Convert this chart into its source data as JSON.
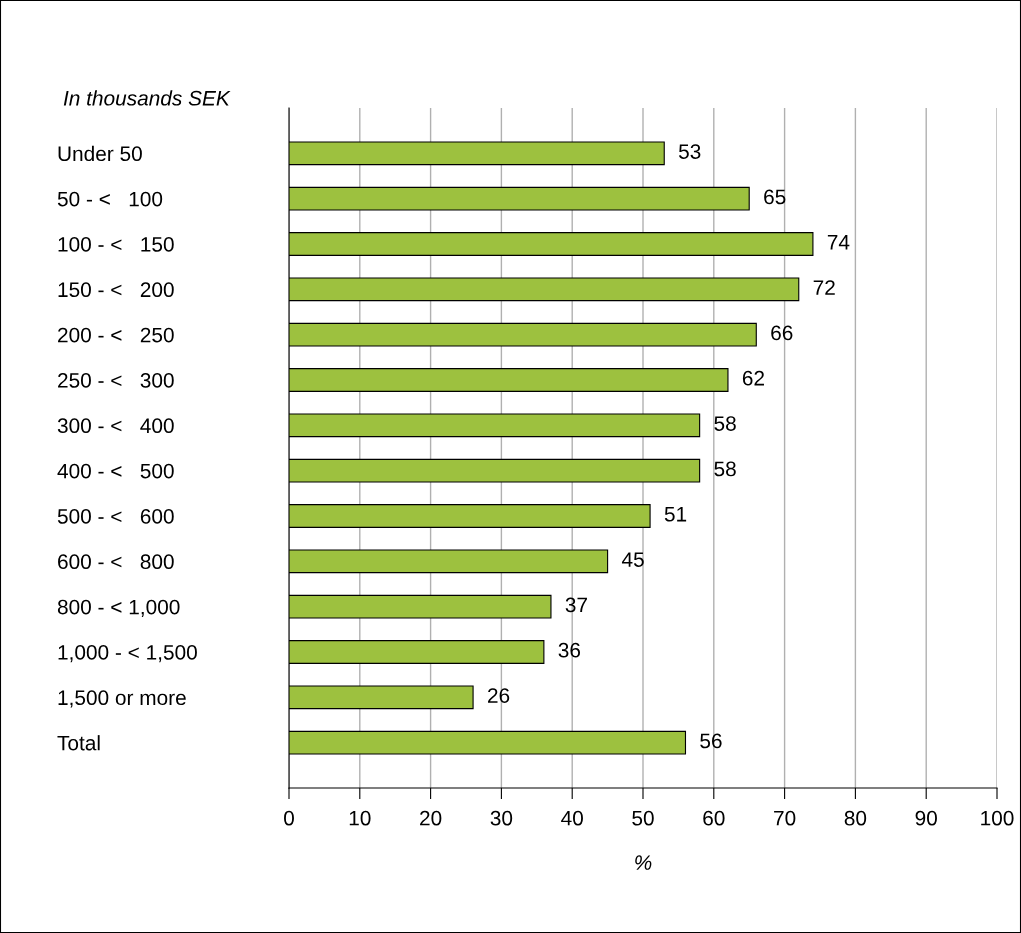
{
  "chart_data": {
    "type": "bar",
    "orientation": "horizontal",
    "ylabel": "In thousands SEK",
    "xlabel": "%",
    "categories": [
      "Under 50",
      "50 - <   100",
      "100 - <   150",
      "150 - <   200",
      "200 - <   250",
      "250 - <   300",
      "300 - <   400",
      "400 - <   500",
      "500 - <   600",
      "600 - <   800",
      "800 - < 1,000",
      "1,000 - < 1,500",
      "1,500 or more",
      "Total"
    ],
    "values": [
      53,
      65,
      74,
      72,
      66,
      62,
      58,
      58,
      51,
      45,
      37,
      36,
      26,
      56
    ],
    "color": "#9dc13f",
    "data_labels": true,
    "grid": "x",
    "xlim": [
      0,
      100
    ],
    "xticks": [
      0,
      10,
      20,
      30,
      40,
      50,
      60,
      70,
      80,
      90,
      100
    ]
  }
}
